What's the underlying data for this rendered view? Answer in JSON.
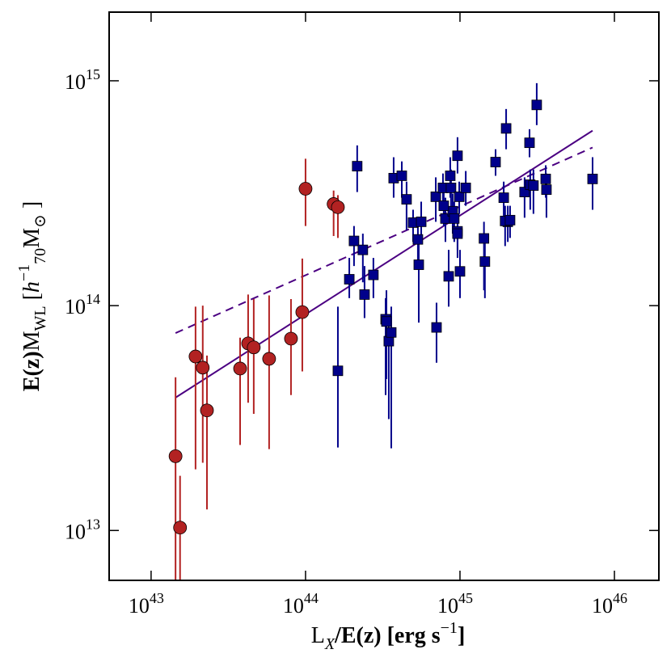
{
  "chart_data": {
    "type": "scatter",
    "xscale": "log",
    "yscale": "log",
    "xlim": [
      5.35e+42,
      1.94e+46
    ],
    "ylim": [
      6000000000000.0,
      2020000000000000.0
    ],
    "xticks": [
      {
        "value": 1e+43,
        "label": "10",
        "exponent": "43"
      },
      {
        "value": 1e+44,
        "label": "10",
        "exponent": "44"
      },
      {
        "value": 1e+45,
        "label": "10",
        "exponent": "45"
      },
      {
        "value": 1e+46,
        "label": "10",
        "exponent": "46"
      }
    ],
    "yticks": [
      {
        "value": 10000000000000.0,
        "label": "10",
        "exponent": "13"
      },
      {
        "value": 100000000000000.0,
        "label": "10",
        "exponent": "14"
      },
      {
        "value": 1000000000000000.0,
        "label": "10",
        "exponent": "15"
      }
    ],
    "xlabel": [
      {
        "text": "L"
      },
      {
        "text": "X",
        "shift": "sub",
        "style": "italic"
      },
      {
        "text": "/E(z) [erg s",
        "weight": "bold"
      },
      {
        "text": "−1",
        "shift": "super"
      },
      {
        "text": "]",
        "weight": "bold"
      }
    ],
    "ylabel": [
      {
        "text": "E(z)",
        "weight": "bold"
      },
      {
        "text": "M"
      },
      {
        "text": "WL",
        "shift": "sub"
      },
      {
        "text": " ["
      },
      {
        "text": "h",
        "style": "italic"
      },
      {
        "text": "−1",
        "shift": "super"
      },
      {
        "text": "70",
        "shift": "sub"
      },
      {
        "text": "M"
      },
      {
        "text": "⊙",
        "shift": "sub"
      },
      {
        "text": " ]"
      }
    ],
    "series": [
      {
        "type": "scatter",
        "marker": "circle",
        "color": "#b22222",
        "x": [
          1.44e+43,
          1.54e+43,
          1.94e+43,
          2.16e+43,
          2.3e+43,
          3.77e+43,
          4.25e+43,
          4.62e+43,
          5.81e+43,
          8.05e+43,
          9.53e+43,
          1e+44,
          1.52e+44,
          1.62e+44
        ],
        "values": [
          21400000000000.0,
          10300000000000.0,
          59400000000000.0,
          53000000000000.0,
          34200000000000.0,
          52500000000000.0,
          67900000000000.0,
          65200000000000.0,
          58000000000000.0,
          71300000000000.0,
          93600000000000.0,
          331000000000000.0,
          283000000000000.0,
          274000000000000.0
        ],
        "lower": [
          4000000000000.0,
          4000000000000.0,
          18700000000000.0,
          20000000000000.0,
          12400000000000.0,
          24000000000000.0,
          37000000000000.0,
          33000000000000.0,
          23000000000000.0,
          40000000000000.0,
          51000000000000.0,
          226000000000000.0,
          204000000000000.0,
          200000000000000.0
        ],
        "upper": [
          48000000000000.0,
          17500000000000.0,
          99000000000000.0,
          100000000000000.0,
          60000000000000.0,
          72000000000000.0,
          112000000000000.0,
          107000000000000.0,
          111000000000000.0,
          107000000000000.0,
          162000000000000.0,
          450000000000000.0,
          325000000000000.0,
          310000000000000.0
        ]
      },
      {
        "type": "scatter",
        "marker": "square",
        "color": "#00008b",
        "x": [
          1.62e+44,
          2.16e+44,
          2.06e+44,
          2.35e+44,
          2.41e+44,
          1.92e+44,
          2.75e+44,
          3.3e+44,
          3.34e+44,
          3.72e+44,
          4.2e+44,
          4.51e+44,
          4.97e+44,
          5.34e+44,
          5.41e+44,
          5.61e+44,
          3.46e+44,
          3.59e+44,
          7.05e+44,
          6.97e+44,
          7.76e+44,
          8.05e+44,
          8.45e+44,
          8.65e+44,
          8.75e+44,
          8.97e+44,
          9.18e+44,
          9.64e+44,
          9.64e+44,
          9.64e+44,
          9.89e+44,
          1e+45,
          1.09e+45,
          1.43e+45,
          1.45e+45,
          1.7e+45,
          1.92e+45,
          1.99e+45,
          2.04e+45,
          1.96e+45,
          2.11e+45,
          2.62e+45,
          2.82e+45,
          2.85e+45,
          2.99e+45,
          3.14e+45,
          3.59e+45,
          3.63e+45,
          7.22e+45,
          7.85e+44
        ],
        "values": [
          51300000000000.0,
          417000000000000.0,
          194000000000000.0,
          177000000000000.0,
          112000000000000.0,
          131000000000000.0,
          137000000000000.0,
          87000000000000.0,
          85000000000000.0,
          369000000000000.0,
          378000000000000.0,
          297000000000000.0,
          234000000000000.0,
          197000000000000.0,
          152000000000000.0,
          236000000000000.0,
          69500000000000.0,
          76000000000000.0,
          80000000000000.0,
          305000000000000.0,
          334000000000000.0,
          244000000000000.0,
          135000000000000.0,
          378000000000000.0,
          334000000000000.0,
          263000000000000.0,
          244000000000000.0,
          464000000000000.0,
          214000000000000.0,
          209000000000000.0,
          305000000000000.0,
          142000000000000.0,
          334000000000000.0,
          199000000000000.0,
          157000000000000.0,
          435000000000000.0,
          302000000000000.0,
          614000000000000.0,
          236000000000000.0,
          238000000000000.0,
          240000000000000.0,
          320000000000000.0,
          530000000000000.0,
          345000000000000.0,
          342000000000000.0,
          781000000000000.0,
          366000000000000.0,
          328000000000000.0,
          366000000000000.0,
          278000000000000.0
        ],
        "lower": [
          23400000000000.0,
          320000000000000.0,
          150000000000000.0,
          127000000000000.0,
          88000000000000.0,
          108000000000000.0,
          108000000000000.0,
          40000000000000.0,
          47200000000000.0,
          302000000000000.0,
          302000000000000.0,
          217000000000000.0,
          192000000000000.0,
          150000000000000.0,
          84000000000000.0,
          192000000000000.0,
          31300000000000.0,
          23200000000000.0,
          55700000000000.0,
          236000000000000.0,
          267000000000000.0,
          192000000000000.0,
          99000000000000.0,
          302000000000000.0,
          267000000000000.0,
          209000000000000.0,
          192000000000000.0,
          387000000000000.0,
          177000000000000.0,
          163000000000000.0,
          256000000000000.0,
          108000000000000.0,
          278000000000000.0,
          117000000000000.0,
          108000000000000.0,
          378000000000000.0,
          236000000000000.0,
          496000000000000.0,
          192000000000000.0,
          184000000000000.0,
          200000000000000.0,
          246000000000000.0,
          457000000000000.0,
          267000000000000.0,
          256000000000000.0,
          635000000000000.0,
          302000000000000.0,
          246000000000000.0,
          267000000000000.0,
          226000000000000.0
        ],
        "upper": [
          99000000000000.0,
          516000000000000.0,
          226000000000000.0,
          209000000000000.0,
          150000000000000.0,
          163000000000000.0,
          163000000000000.0,
          108000000000000.0,
          117000000000000.0,
          457000000000000.0,
          438000000000000.0,
          356000000000000.0,
          267000000000000.0,
          226000000000000.0,
          192000000000000.0,
          290000000000000.0,
          91000000000000.0,
          99000000000000.0,
          103000000000000.0,
          372000000000000.0,
          387000000000000.0,
          302000000000000.0,
          177000000000000.0,
          457000000000000.0,
          403000000000000.0,
          315000000000000.0,
          290000000000000.0,
          561000000000000.0,
          256000000000000.0,
          246000000000000.0,
          356000000000000.0,
          177000000000000.0,
          397000000000000.0,
          236000000000000.0,
          192000000000000.0,
          496000000000000.0,
          356000000000000.0,
          749000000000000.0,
          278000000000000.0,
          278000000000000.0,
          278000000000000.0,
          372000000000000.0,
          609000000000000.0,
          403000000000000.0,
          403000000000000.0,
          976000000000000.0,
          421000000000000.0,
          387000000000000.0,
          457000000000000.0,
          328000000000000.0
        ]
      },
      {
        "type": "line",
        "color": "#4b0082",
        "dashed": false,
        "x": [
          1.44e+43,
          7.22e+45
        ],
        "values": [
          39000000000000.0,
          600000000000000.0
        ]
      },
      {
        "type": "line",
        "color": "#4b0082",
        "dashed": true,
        "x": [
          1.44e+43,
          7.22e+45
        ],
        "values": [
          75500000000000.0,
          505000000000000.0
        ]
      }
    ]
  }
}
